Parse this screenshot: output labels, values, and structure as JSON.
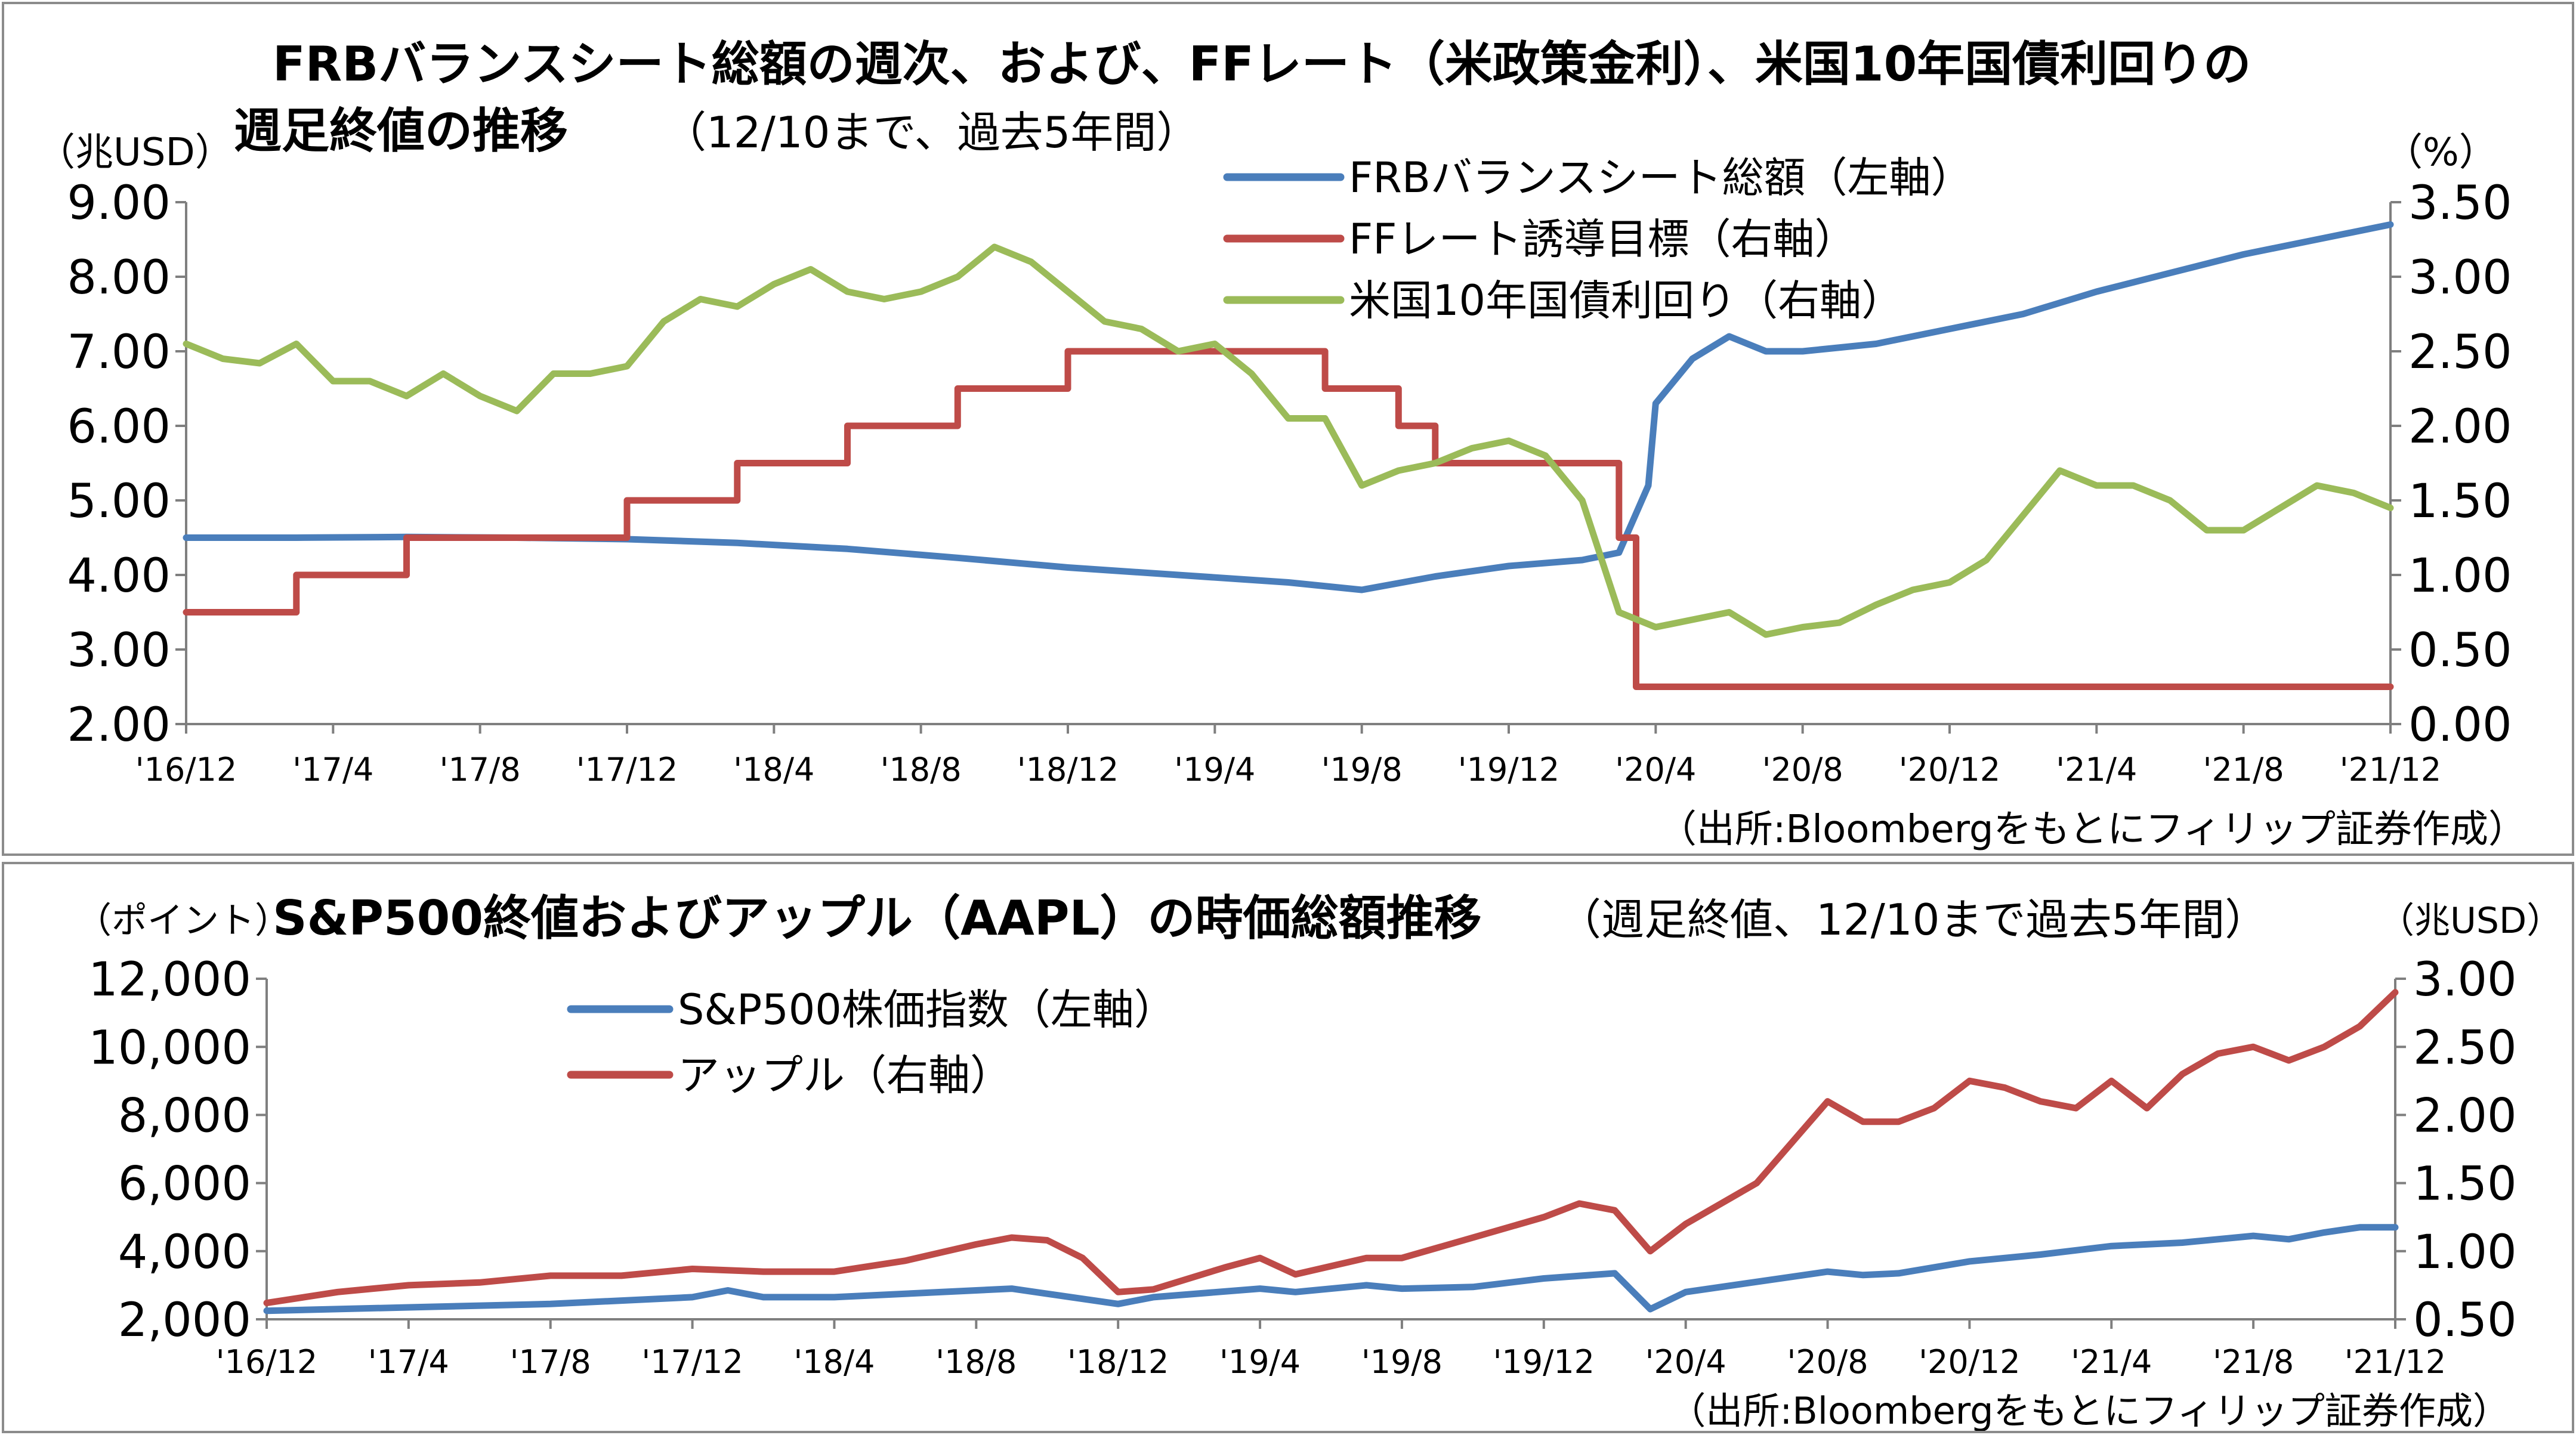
{
  "charts_meta": {
    "source_note": "（出所:Bloombergをもとにフィリップ証券作成）"
  },
  "chart_data": [
    {
      "type": "line",
      "title_line1": "FRBバランスシート総額の週次、および、FFレート（米政策金利）、米国10年国債利回りの",
      "title_line2": "週足終値の推移",
      "subtitle": "（12/10まで、過去5年間）",
      "left_unit": "（兆USD）",
      "right_unit": "（%）",
      "x_tick_labels": [
        "'16/12",
        "'17/4",
        "'17/8",
        "'17/12",
        "'18/4",
        "'18/8",
        "'18/12",
        "'19/4",
        "'19/8",
        "'19/12",
        "'20/4",
        "'20/8",
        "'20/12",
        "'21/4",
        "'21/8",
        "'21/12"
      ],
      "x_range": [
        "2016-12",
        "2021-12"
      ],
      "left_axis": {
        "ticks": [
          "9.00",
          "8.00",
          "7.00",
          "6.00",
          "5.00",
          "4.00",
          "3.00",
          "2.00"
        ],
        "range": [
          2.0,
          9.0
        ]
      },
      "right_axis": {
        "ticks": [
          "3.50",
          "3.00",
          "2.50",
          "2.00",
          "1.50",
          "1.00",
          "0.50",
          "0.00"
        ],
        "range": [
          0.0,
          3.5
        ]
      },
      "legend_position": "top-center",
      "series": [
        {
          "name": "FRBバランスシート総額（左軸）",
          "axis": "left",
          "color": "#4a7ebb",
          "points": [
            [
              "2016-12",
              4.5
            ],
            [
              "2017-03",
              4.5
            ],
            [
              "2017-06",
              4.51
            ],
            [
              "2017-09",
              4.5
            ],
            [
              "2017-12",
              4.48
            ],
            [
              "2018-03",
              4.43
            ],
            [
              "2018-06",
              4.35
            ],
            [
              "2018-09",
              4.23
            ],
            [
              "2018-12",
              4.1
            ],
            [
              "2019-03",
              4.0
            ],
            [
              "2019-06",
              3.9
            ],
            [
              "2019-08",
              3.8
            ],
            [
              "2019-10",
              3.98
            ],
            [
              "2019-12",
              4.12
            ],
            [
              "2020-02",
              4.2
            ],
            [
              "2020-03",
              4.3
            ],
            [
              "2020-03-25",
              5.2
            ],
            [
              "2020-04",
              6.3
            ],
            [
              "2020-05",
              6.9
            ],
            [
              "2020-06",
              7.2
            ],
            [
              "2020-07",
              7.0
            ],
            [
              "2020-08",
              7.0
            ],
            [
              "2020-10",
              7.1
            ],
            [
              "2020-12",
              7.3
            ],
            [
              "2021-02",
              7.5
            ],
            [
              "2021-04",
              7.8
            ],
            [
              "2021-06",
              8.05
            ],
            [
              "2021-08",
              8.3
            ],
            [
              "2021-10",
              8.5
            ],
            [
              "2021-12",
              8.7
            ]
          ]
        },
        {
          "name": "FFレート誘導目標（右軸）",
          "axis": "right",
          "color": "#be4b48",
          "points": [
            [
              "2016-12",
              0.75
            ],
            [
              "2017-03",
              0.75
            ],
            [
              "2017-03",
              1.0
            ],
            [
              "2017-06",
              1.0
            ],
            [
              "2017-06",
              1.25
            ],
            [
              "2017-12",
              1.25
            ],
            [
              "2017-12",
              1.5
            ],
            [
              "2018-03",
              1.5
            ],
            [
              "2018-03",
              1.75
            ],
            [
              "2018-06",
              1.75
            ],
            [
              "2018-06",
              2.0
            ],
            [
              "2018-09",
              2.0
            ],
            [
              "2018-09",
              2.25
            ],
            [
              "2018-12",
              2.25
            ],
            [
              "2018-12",
              2.5
            ],
            [
              "2019-07",
              2.5
            ],
            [
              "2019-07",
              2.25
            ],
            [
              "2019-09",
              2.25
            ],
            [
              "2019-09",
              2.0
            ],
            [
              "2019-10",
              2.0
            ],
            [
              "2019-10",
              1.75
            ],
            [
              "2020-03",
              1.75
            ],
            [
              "2020-03",
              1.25
            ],
            [
              "2020-03-15",
              1.25
            ],
            [
              "2020-03-15",
              0.25
            ],
            [
              "2021-12",
              0.25
            ]
          ]
        },
        {
          "name": "米国10年国債利回り（右軸）",
          "axis": "right",
          "color": "#9bbb59",
          "points": [
            [
              "2016-12",
              2.55
            ],
            [
              "2017-01",
              2.45
            ],
            [
              "2017-02",
              2.42
            ],
            [
              "2017-03",
              2.55
            ],
            [
              "2017-04",
              2.3
            ],
            [
              "2017-05",
              2.3
            ],
            [
              "2017-06",
              2.2
            ],
            [
              "2017-07",
              2.35
            ],
            [
              "2017-08",
              2.2
            ],
            [
              "2017-09",
              2.1
            ],
            [
              "2017-10",
              2.35
            ],
            [
              "2017-11",
              2.35
            ],
            [
              "2017-12",
              2.4
            ],
            [
              "2018-01",
              2.7
            ],
            [
              "2018-02",
              2.85
            ],
            [
              "2018-03",
              2.8
            ],
            [
              "2018-04",
              2.95
            ],
            [
              "2018-05",
              3.05
            ],
            [
              "2018-06",
              2.9
            ],
            [
              "2018-07",
              2.85
            ],
            [
              "2018-08",
              2.9
            ],
            [
              "2018-09",
              3.0
            ],
            [
              "2018-10",
              3.2
            ],
            [
              "2018-11",
              3.1
            ],
            [
              "2018-12",
              2.9
            ],
            [
              "2019-01",
              2.7
            ],
            [
              "2019-02",
              2.65
            ],
            [
              "2019-03",
              2.5
            ],
            [
              "2019-04",
              2.55
            ],
            [
              "2019-05",
              2.35
            ],
            [
              "2019-06",
              2.05
            ],
            [
              "2019-07",
              2.05
            ],
            [
              "2019-08",
              1.6
            ],
            [
              "2019-09",
              1.7
            ],
            [
              "2019-10",
              1.75
            ],
            [
              "2019-11",
              1.85
            ],
            [
              "2019-12",
              1.9
            ],
            [
              "2020-01",
              1.8
            ],
            [
              "2020-02",
              1.5
            ],
            [
              "2020-03",
              0.75
            ],
            [
              "2020-04",
              0.65
            ],
            [
              "2020-05",
              0.7
            ],
            [
              "2020-06",
              0.75
            ],
            [
              "2020-07",
              0.6
            ],
            [
              "2020-08",
              0.65
            ],
            [
              "2020-09",
              0.68
            ],
            [
              "2020-10",
              0.8
            ],
            [
              "2020-11",
              0.9
            ],
            [
              "2020-12",
              0.95
            ],
            [
              "2021-01",
              1.1
            ],
            [
              "2021-02",
              1.4
            ],
            [
              "2021-03",
              1.7
            ],
            [
              "2021-04",
              1.6
            ],
            [
              "2021-05",
              1.6
            ],
            [
              "2021-06",
              1.5
            ],
            [
              "2021-07",
              1.3
            ],
            [
              "2021-08",
              1.3
            ],
            [
              "2021-09",
              1.45
            ],
            [
              "2021-10",
              1.6
            ],
            [
              "2021-11",
              1.55
            ],
            [
              "2021-12",
              1.45
            ]
          ]
        }
      ]
    },
    {
      "type": "line",
      "title": "S&P500終値およびアップル（AAPL）の時価総額推移",
      "subtitle": "（週足終値、12/10まで過去5年間）",
      "left_unit": "（ポイント）",
      "right_unit": "（兆USD）",
      "x_tick_labels": [
        "'16/12",
        "'17/4",
        "'17/8",
        "'17/12",
        "'18/4",
        "'18/8",
        "'18/12",
        "'19/4",
        "'19/8",
        "'19/12",
        "'20/4",
        "'20/8",
        "'20/12",
        "'21/4",
        "'21/8",
        "'21/12"
      ],
      "x_range": [
        "2016-12",
        "2021-12"
      ],
      "left_axis": {
        "ticks": [
          "12,000",
          "10,000",
          "8,000",
          "6,000",
          "4,000",
          "2,000"
        ],
        "range": [
          2000,
          12000
        ]
      },
      "right_axis": {
        "ticks": [
          "3.00",
          "2.50",
          "2.00",
          "1.50",
          "1.00",
          "0.50"
        ],
        "range": [
          0.5,
          3.0
        ]
      },
      "legend_position": "top-left",
      "series": [
        {
          "name": "S&P500株価指数（左軸）",
          "axis": "left",
          "color": "#4a7ebb",
          "points": [
            [
              "2016-12",
              2250
            ],
            [
              "2017-04",
              2350
            ],
            [
              "2017-08",
              2450
            ],
            [
              "2017-12",
              2650
            ],
            [
              "2018-01",
              2850
            ],
            [
              "2018-02",
              2650
            ],
            [
              "2018-04",
              2650
            ],
            [
              "2018-08",
              2850
            ],
            [
              "2018-09",
              2900
            ],
            [
              "2018-10",
              2750
            ],
            [
              "2018-12",
              2450
            ],
            [
              "2019-01",
              2650
            ],
            [
              "2019-04",
              2900
            ],
            [
              "2019-05",
              2800
            ],
            [
              "2019-07",
              3000
            ],
            [
              "2019-08",
              2900
            ],
            [
              "2019-10",
              2950
            ],
            [
              "2019-12",
              3200
            ],
            [
              "2020-02",
              3350
            ],
            [
              "2020-03",
              2300
            ],
            [
              "2020-04",
              2800
            ],
            [
              "2020-06",
              3100
            ],
            [
              "2020-08",
              3400
            ],
            [
              "2020-09",
              3300
            ],
            [
              "2020-10",
              3350
            ],
            [
              "2020-12",
              3700
            ],
            [
              "2021-02",
              3900
            ],
            [
              "2021-04",
              4150
            ],
            [
              "2021-06",
              4250
            ],
            [
              "2021-08",
              4450
            ],
            [
              "2021-09",
              4350
            ],
            [
              "2021-10",
              4550
            ],
            [
              "2021-11",
              4700
            ],
            [
              "2021-12",
              4700
            ]
          ]
        },
        {
          "name": "アップル（右軸）",
          "axis": "right",
          "color": "#be4b48",
          "points": [
            [
              "2016-12",
              0.62
            ],
            [
              "2017-02",
              0.7
            ],
            [
              "2017-04",
              0.75
            ],
            [
              "2017-06",
              0.77
            ],
            [
              "2017-08",
              0.82
            ],
            [
              "2017-10",
              0.82
            ],
            [
              "2017-12",
              0.87
            ],
            [
              "2018-02",
              0.85
            ],
            [
              "2018-04",
              0.85
            ],
            [
              "2018-06",
              0.93
            ],
            [
              "2018-08",
              1.05
            ],
            [
              "2018-09",
              1.1
            ],
            [
              "2018-10",
              1.08
            ],
            [
              "2018-11",
              0.95
            ],
            [
              "2018-12",
              0.7
            ],
            [
              "2019-01",
              0.72
            ],
            [
              "2019-03",
              0.88
            ],
            [
              "2019-04",
              0.95
            ],
            [
              "2019-05",
              0.83
            ],
            [
              "2019-07",
              0.95
            ],
            [
              "2019-08",
              0.95
            ],
            [
              "2019-10",
              1.1
            ],
            [
              "2019-12",
              1.25
            ],
            [
              "2020-01",
              1.35
            ],
            [
              "2020-02",
              1.3
            ],
            [
              "2020-03",
              1.0
            ],
            [
              "2020-04",
              1.2
            ],
            [
              "2020-06",
              1.5
            ],
            [
              "2020-07",
              1.8
            ],
            [
              "2020-08",
              2.1
            ],
            [
              "2020-09",
              1.95
            ],
            [
              "2020-10",
              1.95
            ],
            [
              "2020-11",
              2.05
            ],
            [
              "2020-12",
              2.25
            ],
            [
              "2021-01",
              2.2
            ],
            [
              "2021-02",
              2.1
            ],
            [
              "2021-03",
              2.05
            ],
            [
              "2021-04",
              2.25
            ],
            [
              "2021-05",
              2.05
            ],
            [
              "2021-06",
              2.3
            ],
            [
              "2021-07",
              2.45
            ],
            [
              "2021-08",
              2.5
            ],
            [
              "2021-09",
              2.4
            ],
            [
              "2021-10",
              2.5
            ],
            [
              "2021-11",
              2.65
            ],
            [
              "2021-12",
              2.9
            ]
          ]
        }
      ]
    }
  ]
}
